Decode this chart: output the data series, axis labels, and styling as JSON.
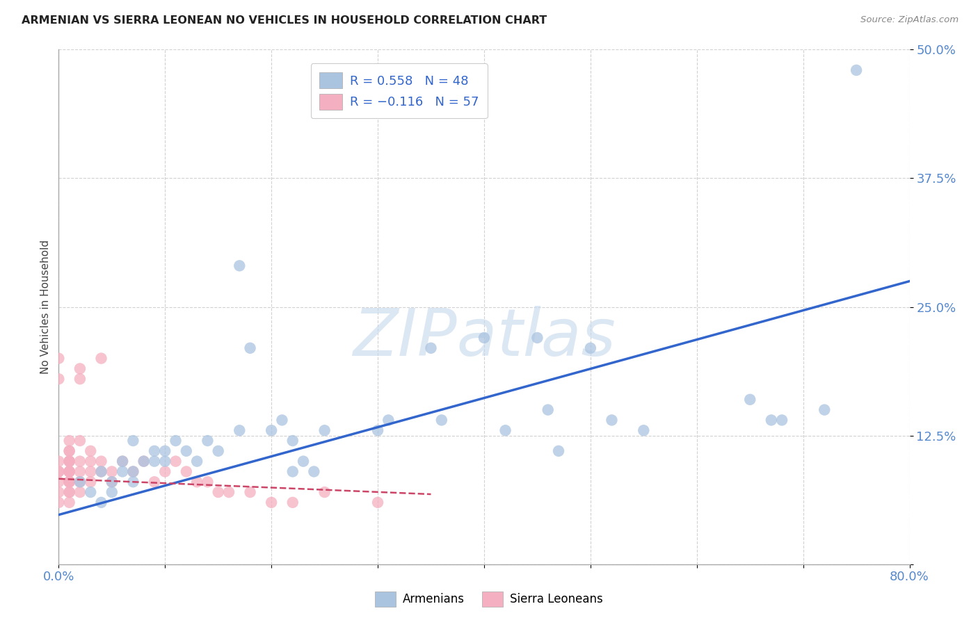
{
  "title": "ARMENIAN VS SIERRA LEONEAN NO VEHICLES IN HOUSEHOLD CORRELATION CHART",
  "source": "Source: ZipAtlas.com",
  "ylabel": "No Vehicles in Household",
  "xlim": [
    0.0,
    0.8
  ],
  "ylim": [
    0.0,
    0.5
  ],
  "xticks": [
    0.0,
    0.1,
    0.2,
    0.3,
    0.4,
    0.5,
    0.6,
    0.7,
    0.8
  ],
  "xticklabels": [
    "0.0%",
    "",
    "",
    "",
    "",
    "",
    "",
    "",
    "80.0%"
  ],
  "yticks": [
    0.0,
    0.125,
    0.25,
    0.375,
    0.5
  ],
  "yticklabels": [
    "",
    "12.5%",
    "25.0%",
    "37.5%",
    "50.0%"
  ],
  "armenian_color": "#aac4e0",
  "sierra_leone_color": "#f4afc0",
  "trend_armenian_color": "#3366cc",
  "trend_sierra_leone_color": "#cc4466",
  "watermark": "ZIPatlas",
  "background_color": "#ffffff",
  "grid_color": "#cccccc",
  "armenian_x": [
    0.02,
    0.03,
    0.04,
    0.04,
    0.05,
    0.05,
    0.06,
    0.06,
    0.07,
    0.07,
    0.07,
    0.08,
    0.09,
    0.09,
    0.1,
    0.1,
    0.11,
    0.12,
    0.13,
    0.14,
    0.15,
    0.17,
    0.17,
    0.18,
    0.2,
    0.21,
    0.22,
    0.22,
    0.23,
    0.24,
    0.25,
    0.3,
    0.31,
    0.35,
    0.36,
    0.4,
    0.42,
    0.45,
    0.46,
    0.47,
    0.5,
    0.52,
    0.55,
    0.65,
    0.67,
    0.68,
    0.72,
    0.75
  ],
  "armenian_y": [
    0.08,
    0.07,
    0.09,
    0.06,
    0.08,
    0.07,
    0.1,
    0.09,
    0.08,
    0.09,
    0.12,
    0.1,
    0.11,
    0.1,
    0.1,
    0.11,
    0.12,
    0.11,
    0.1,
    0.12,
    0.11,
    0.29,
    0.13,
    0.21,
    0.13,
    0.14,
    0.09,
    0.12,
    0.1,
    0.09,
    0.13,
    0.13,
    0.14,
    0.21,
    0.14,
    0.22,
    0.13,
    0.22,
    0.15,
    0.11,
    0.21,
    0.14,
    0.13,
    0.16,
    0.14,
    0.14,
    0.15,
    0.48
  ],
  "sierra_x": [
    0.0,
    0.0,
    0.0,
    0.0,
    0.0,
    0.0,
    0.0,
    0.0,
    0.01,
    0.01,
    0.01,
    0.01,
    0.01,
    0.01,
    0.01,
    0.01,
    0.01,
    0.01,
    0.01,
    0.01,
    0.01,
    0.01,
    0.01,
    0.01,
    0.01,
    0.02,
    0.02,
    0.02,
    0.02,
    0.02,
    0.02,
    0.02,
    0.03,
    0.03,
    0.03,
    0.03,
    0.04,
    0.04,
    0.04,
    0.05,
    0.05,
    0.06,
    0.07,
    0.08,
    0.09,
    0.1,
    0.11,
    0.12,
    0.13,
    0.14,
    0.15,
    0.16,
    0.18,
    0.2,
    0.22,
    0.25,
    0.3
  ],
  "sierra_y": [
    0.09,
    0.1,
    0.08,
    0.07,
    0.06,
    0.2,
    0.18,
    0.09,
    0.09,
    0.1,
    0.11,
    0.08,
    0.07,
    0.06,
    0.08,
    0.09,
    0.1,
    0.11,
    0.12,
    0.1,
    0.09,
    0.08,
    0.07,
    0.08,
    0.09,
    0.1,
    0.09,
    0.12,
    0.08,
    0.07,
    0.18,
    0.19,
    0.1,
    0.09,
    0.08,
    0.11,
    0.1,
    0.09,
    0.2,
    0.09,
    0.08,
    0.1,
    0.09,
    0.1,
    0.08,
    0.09,
    0.1,
    0.09,
    0.08,
    0.08,
    0.07,
    0.07,
    0.07,
    0.06,
    0.06,
    0.07,
    0.06
  ],
  "arm_trend_x0": 0.0,
  "arm_trend_y0": 0.048,
  "arm_trend_x1": 0.8,
  "arm_trend_y1": 0.275,
  "sl_trend_x0": 0.0,
  "sl_trend_y0": 0.083,
  "sl_trend_x1": 0.35,
  "sl_trend_y1": 0.068
}
